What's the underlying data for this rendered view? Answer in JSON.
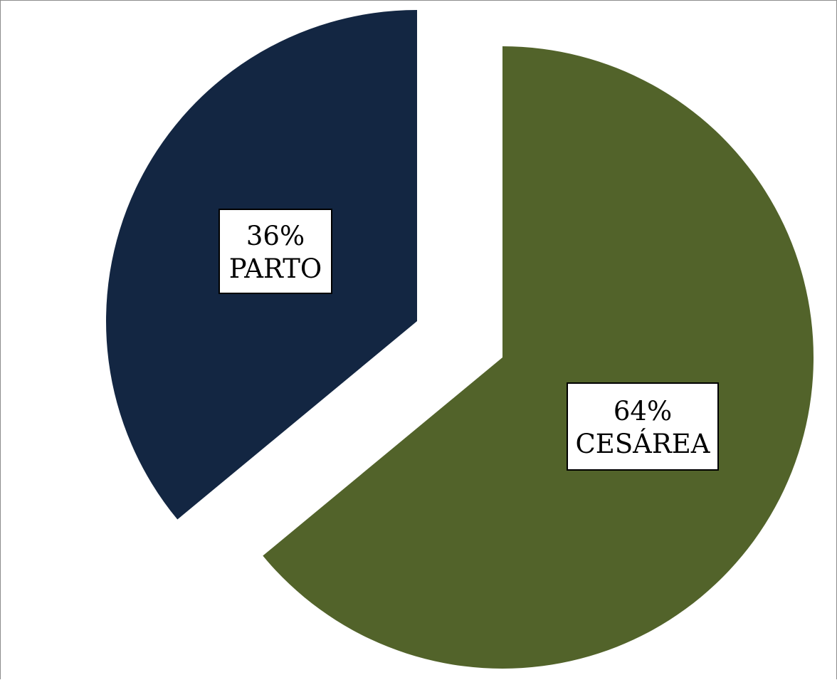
{
  "chart_data": {
    "type": "pie",
    "title": "",
    "exploded": true,
    "slices": [
      {
        "label": "CESÁREA",
        "value": 64,
        "percent_text": "64%",
        "color": "#52632a"
      },
      {
        "label": "PARTO",
        "value": 36,
        "percent_text": "36%",
        "color": "#132642"
      }
    ],
    "legend": "none",
    "data_labels": "inside, boxed"
  }
}
